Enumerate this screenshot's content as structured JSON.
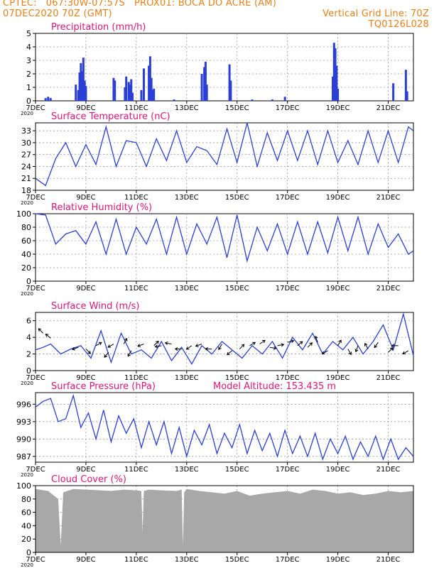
{
  "header": {
    "line1_left": "CPTEC:   067:30W-07:57S   PROX01: BOCA DO ACRE (AM)",
    "line2_left": "07DEC2020 70Z (GMT)",
    "line2_right": "Vertical Grid Line: 70Z",
    "line3_right": "TQ0126L028"
  },
  "colors": {
    "header": "#e8801a",
    "title": "#e0157a",
    "line": "#2b3fd6",
    "cloud": "#a8a8a8",
    "grid": "#999999"
  },
  "x_axis": {
    "day_ticks": [
      "7DEC",
      "9DEC",
      "11DEC",
      "13DEC",
      "15DEC",
      "17DEC",
      "19DEC",
      "21DEC"
    ],
    "day_offsets": [
      0,
      2,
      4,
      6,
      8,
      10,
      12,
      14
    ],
    "range_days": [
      0,
      15
    ],
    "year_label": "2020"
  },
  "chart_data": [
    {
      "type": "bar",
      "title": "Precipitation (mm/h)",
      "ylim": [
        0,
        5
      ],
      "yticks": [
        "0",
        "1",
        "2",
        "3",
        "4",
        "5"
      ],
      "x_days": [
        0.4,
        0.5,
        0.6,
        1.6,
        1.7,
        1.75,
        1.8,
        1.85,
        1.9,
        1.95,
        2.0,
        3.1,
        3.15,
        3.55,
        3.6,
        3.7,
        3.75,
        3.8,
        3.85,
        4.2,
        4.3,
        4.5,
        4.55,
        4.6,
        4.65,
        4.7,
        5.5,
        6.6,
        6.7,
        6.75,
        6.8,
        7.7,
        7.75,
        8.6,
        9.4,
        9.9,
        11.8,
        11.85,
        11.9,
        11.95,
        12.0,
        14.2,
        14.7,
        14.75
      ],
      "values": [
        0.2,
        0.3,
        0.2,
        1.2,
        0.8,
        2.1,
        2.8,
        2.2,
        3.2,
        1.5,
        1.1,
        1.7,
        1.5,
        1.0,
        1.8,
        1.4,
        1.2,
        1.6,
        0.6,
        0.8,
        2.4,
        2.6,
        3.3,
        1.7,
        0.8,
        0.9,
        0.1,
        2.0,
        2.5,
        2.9,
        1.2,
        2.7,
        1.5,
        0.1,
        0.1,
        0.3,
        1.8,
        4.3,
        3.9,
        2.6,
        0.9,
        1.3,
        2.3,
        0.7
      ]
    },
    {
      "type": "line",
      "title": "Surface Temperature (nC)",
      "ylim": [
        18,
        35
      ],
      "yticks": [
        "18",
        "21",
        "24",
        "27",
        "30",
        "33"
      ],
      "x_days": [
        0,
        0.4,
        0.8,
        1.2,
        1.6,
        2.0,
        2.4,
        2.8,
        3.2,
        3.6,
        4.0,
        4.4,
        4.8,
        5.2,
        5.6,
        6.0,
        6.4,
        6.8,
        7.2,
        7.6,
        8.0,
        8.4,
        8.8,
        9.2,
        9.6,
        10.0,
        10.4,
        10.8,
        11.2,
        11.6,
        12.0,
        12.4,
        12.8,
        13.2,
        13.6,
        14.0,
        14.4,
        14.8,
        15.0
      ],
      "values": [
        21,
        19.2,
        26,
        30,
        24,
        29.5,
        24.5,
        34,
        24,
        30.5,
        30,
        24,
        31,
        25.5,
        33,
        25,
        29,
        28,
        24.5,
        33.5,
        25,
        35,
        24,
        32.5,
        25.5,
        33,
        25.5,
        33,
        24.5,
        33,
        25,
        30.5,
        24.5,
        33,
        25,
        33,
        25,
        34,
        33
      ]
    },
    {
      "type": "line",
      "title": "Relative Humidity (%)",
      "ylim": [
        0,
        100
      ],
      "yticks": [
        "0",
        "20",
        "40",
        "60",
        "80",
        "100"
      ],
      "x_days": [
        0,
        0.4,
        0.8,
        1.2,
        1.6,
        2.0,
        2.4,
        2.8,
        3.2,
        3.6,
        4.0,
        4.4,
        4.8,
        5.2,
        5.6,
        6.0,
        6.4,
        6.8,
        7.2,
        7.6,
        8.0,
        8.4,
        8.8,
        9.2,
        9.6,
        10.0,
        10.4,
        10.8,
        11.2,
        11.6,
        12.0,
        12.4,
        12.8,
        13.2,
        13.6,
        14.0,
        14.4,
        14.8,
        15.0
      ],
      "values": [
        100,
        98,
        55,
        70,
        75,
        55,
        88,
        40,
        92,
        40,
        80,
        55,
        92,
        40,
        95,
        40,
        85,
        55,
        95,
        35,
        98,
        30,
        80,
        45,
        85,
        40,
        88,
        40,
        88,
        42,
        95,
        45,
        95,
        40,
        85,
        50,
        70,
        40,
        45
      ]
    },
    {
      "type": "line",
      "title": "Surface Wind (m/s)",
      "ylim": [
        0,
        7
      ],
      "yticks": [
        "0",
        "2",
        "4",
        "6"
      ],
      "x_days": [
        0,
        0.3,
        0.6,
        1.0,
        1.4,
        1.8,
        2.2,
        2.6,
        3.0,
        3.4,
        3.8,
        4.2,
        4.6,
        5.0,
        5.4,
        5.8,
        6.2,
        6.6,
        7.0,
        7.4,
        7.8,
        8.2,
        8.6,
        9.0,
        9.4,
        9.8,
        10.2,
        10.6,
        11.0,
        11.4,
        11.8,
        12.2,
        12.6,
        13.0,
        13.4,
        13.8,
        14.2,
        14.6,
        15.0
      ],
      "values": [
        2.5,
        2.8,
        3.2,
        2.0,
        2.6,
        3.0,
        1.5,
        4.8,
        1.0,
        4.5,
        2.0,
        2.5,
        1.5,
        3.5,
        1.2,
        2.8,
        0.8,
        3.0,
        2.0,
        3.5,
        2.5,
        1.5,
        3.0,
        2.0,
        3.5,
        1.5,
        4.0,
        2.5,
        4.5,
        2.0,
        3.5,
        2.5,
        4.0,
        2.0,
        3.5,
        5.5,
        2.5,
        6.8,
        1.8
      ],
      "arrow_days": [
        0.3,
        0.6,
        1.7,
        2.0,
        2.4,
        2.9,
        3.1,
        3.5,
        3.8,
        4.3,
        4.7,
        5.0,
        5.4,
        5.8,
        6.2,
        6.6,
        7.0,
        7.4,
        7.8,
        8.1,
        8.5,
        8.9,
        9.3,
        9.6,
        10.0,
        10.4,
        10.8,
        11.2,
        11.6,
        12.0,
        12.4,
        12.8,
        13.2,
        13.6,
        14.0,
        14.4,
        14.8
      ],
      "arrow_speed": [
        4.5,
        3.9,
        2.8,
        2.6,
        3.0,
        2.2,
        3.2,
        3.2,
        2.4,
        3.2,
        3.0,
        3.0,
        3.2,
        2.6,
        3.0,
        3.2,
        2.6,
        3.2,
        2.4,
        2.6,
        3.0,
        3.2,
        2.8,
        3.0,
        3.4,
        3.0,
        2.8,
        3.4,
        2.4,
        3.0,
        2.6,
        3.0,
        2.6,
        3.4,
        2.2,
        3.0,
        2.4
      ],
      "arrow_angle_deg": [
        135,
        140,
        200,
        315,
        30,
        230,
        210,
        60,
        240,
        200,
        45,
        190,
        170,
        180,
        215,
        200,
        180,
        240,
        220,
        45,
        30,
        35,
        350,
        10,
        15,
        40,
        45,
        110,
        210,
        60,
        300,
        250,
        120,
        235,
        45,
        180,
        210
      ]
    },
    {
      "type": "line",
      "title": "Surface Pressure (hPa)",
      "annotation": "Model Altitude: 153.435 m",
      "ylim": [
        986,
        998
      ],
      "yticks": [
        "987",
        "990",
        "993",
        "996"
      ],
      "x_days": [
        0,
        0.3,
        0.6,
        0.9,
        1.2,
        1.5,
        1.8,
        2.1,
        2.4,
        2.7,
        3.0,
        3.3,
        3.6,
        3.9,
        4.2,
        4.5,
        4.8,
        5.1,
        5.4,
        5.7,
        6.0,
        6.3,
        6.6,
        6.9,
        7.2,
        7.5,
        7.8,
        8.1,
        8.4,
        8.7,
        9.0,
        9.3,
        9.6,
        9.9,
        10.2,
        10.5,
        10.8,
        11.1,
        11.4,
        11.7,
        12.0,
        12.3,
        12.6,
        12.9,
        13.2,
        13.5,
        13.8,
        14.1,
        14.4,
        14.7,
        15.0
      ],
      "values": [
        995.5,
        996.5,
        997,
        993,
        993.5,
        997.5,
        992,
        994.5,
        990,
        995,
        989.5,
        994,
        991,
        993.5,
        988.5,
        993,
        989,
        993,
        987.5,
        992,
        987,
        991.5,
        989,
        992.5,
        987.5,
        991,
        988.5,
        992.5,
        987.5,
        991.5,
        988,
        991,
        987,
        991.5,
        987.5,
        990.5,
        987,
        991,
        986.5,
        990,
        987.5,
        990.5,
        986.5,
        989.5,
        987,
        990.5,
        986.5,
        990,
        986.5,
        988.5,
        987
      ]
    },
    {
      "type": "area",
      "title": "Cloud Cover (%)",
      "ylim": [
        0,
        100
      ],
      "yticks": [
        "0",
        "20",
        "40",
        "60",
        "80",
        "100"
      ],
      "x_days": [
        0,
        0.5,
        0.9,
        1.0,
        1.1,
        1.5,
        2.0,
        2.6,
        3.0,
        3.5,
        4.0,
        4.2,
        4.25,
        4.3,
        4.5,
        5.0,
        5.6,
        5.8,
        5.85,
        5.9,
        6.0,
        6.5,
        7.0,
        7.5,
        8.0,
        8.5,
        9.0,
        9.5,
        10.0,
        10.5,
        11.0,
        11.5,
        12.0,
        12.5,
        13.0,
        13.5,
        14.0,
        14.5,
        15.0
      ],
      "values": [
        95,
        92,
        80,
        10,
        90,
        95,
        94,
        93,
        92,
        94,
        93,
        92,
        30,
        92,
        94,
        93,
        92,
        94,
        10,
        90,
        95,
        92,
        90,
        88,
        92,
        85,
        88,
        90,
        92,
        88,
        94,
        92,
        88,
        90,
        86,
        88,
        92,
        90,
        92
      ]
    }
  ]
}
